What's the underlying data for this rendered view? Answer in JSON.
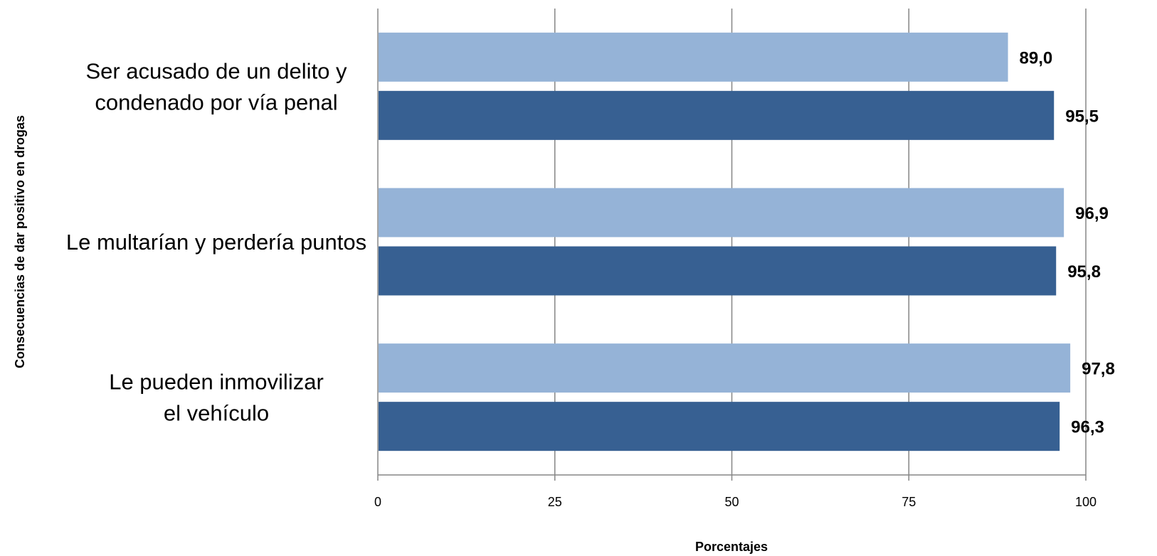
{
  "chart_data": {
    "type": "bar",
    "orientation": "horizontal",
    "categories": [
      [
        "Ser acusado de un delito y",
        "condenado por vía penal"
      ],
      [
        "Le multarían y perdería puntos"
      ],
      [
        "Le pueden inmovilizar",
        "el vehículo"
      ]
    ],
    "series": [
      {
        "values": [
          89.0,
          96.9,
          97.8
        ],
        "labels": [
          "89,0",
          "96,9",
          "97,8"
        ],
        "color": "#95b3d7"
      },
      {
        "values": [
          95.5,
          95.8,
          96.3
        ],
        "labels": [
          "95,5",
          "95,8",
          "96,3"
        ],
        "color": "#376092"
      }
    ],
    "xlim": [
      0,
      100
    ],
    "xticks": [
      0,
      25,
      50,
      75,
      100
    ],
    "xtick_labels": [
      "0",
      "25",
      "50",
      "75",
      "100"
    ],
    "xlabel": "Porcentajes",
    "ylabel": "Consecuencias de dar positivo en drogas",
    "grid": "vertical",
    "legend": "none"
  }
}
